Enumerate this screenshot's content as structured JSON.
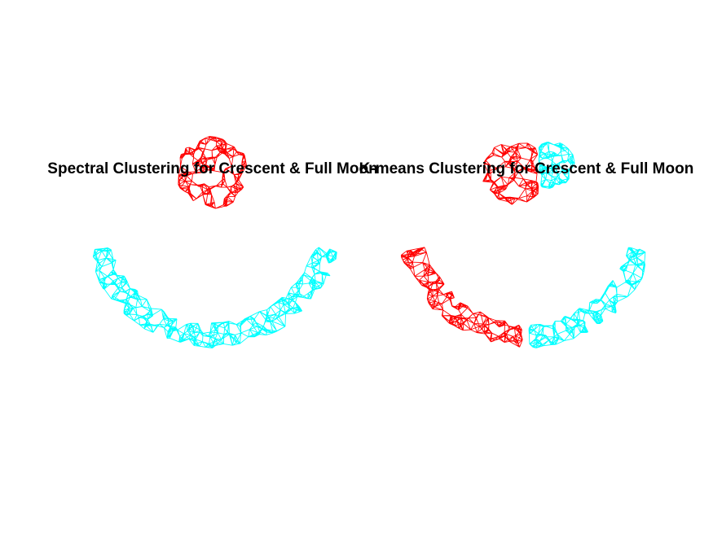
{
  "chart_data": [
    {
      "type": "scatter",
      "title": "Spectral Clustering for Crescent & Full Moon",
      "grid": false,
      "axes_visible": false,
      "series": [
        {
          "color": "#ff0000",
          "shape": "full-moon",
          "center": [
            0,
            0.55
          ],
          "radius": 0.45
        },
        {
          "color": "#00ffff",
          "shape": "crescent",
          "center": [
            0,
            0
          ],
          "radius": 1.45,
          "angle_range_deg": [
            195,
            345
          ]
        }
      ]
    },
    {
      "type": "scatter",
      "title": "K-means Clustering for Crescent & Full Moon",
      "grid": false,
      "axes_visible": false,
      "series": [
        {
          "color": "#ff0000",
          "parts": [
            {
              "shape": "full-moon-part",
              "center": [
                -0.15,
                0.55
              ],
              "radius": 0.4,
              "x_max": 0.15
            },
            {
              "shape": "crescent",
              "center": [
                0,
                0
              ],
              "radius": 1.45,
              "angle_range_deg": [
                195,
                269
              ]
            }
          ]
        },
        {
          "color": "#00ffff",
          "parts": [
            {
              "shape": "full-moon-part",
              "center": [
                0.3,
                0.65
              ],
              "radius": 0.3,
              "x_min": 0.15
            },
            {
              "shape": "crescent",
              "center": [
                0,
                0
              ],
              "radius": 1.45,
              "angle_range_deg": [
                271,
                345
              ]
            }
          ]
        }
      ]
    }
  ]
}
